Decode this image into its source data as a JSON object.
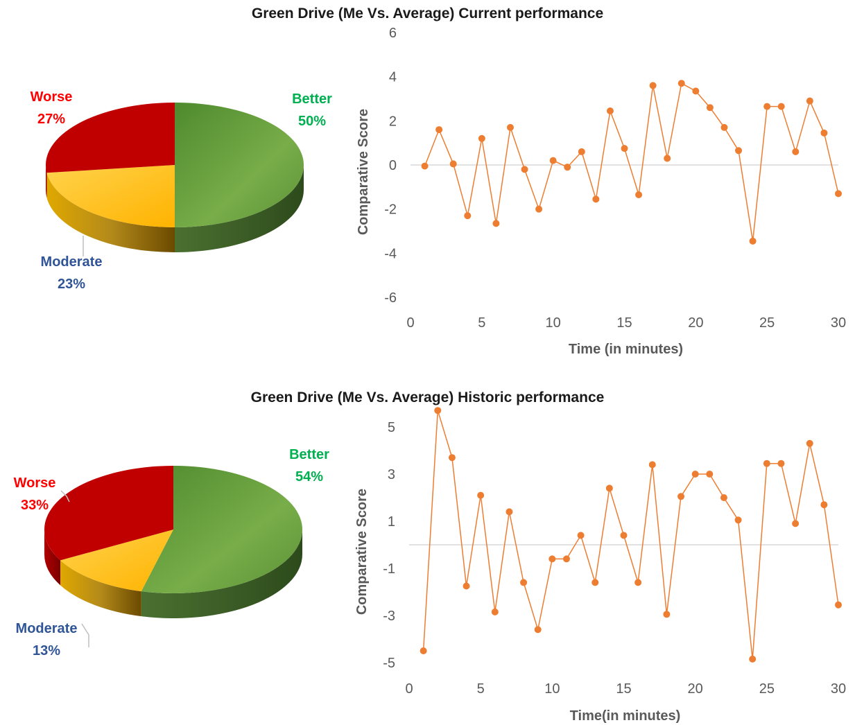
{
  "colors": {
    "better": "#00b050",
    "worse": "#ff0000",
    "moderate": "#2f5597",
    "line": "#ed7d31",
    "pie_green": "#6aa13e",
    "pie_red": "#c00000",
    "pie_yellow": "#ffc000"
  },
  "chart_data": [
    {
      "type": "pie",
      "title": "Green Drive (Me Vs. Average) Current performance",
      "slices": [
        {
          "name": "Better",
          "value": 50,
          "label": "50%"
        },
        {
          "name": "Moderate",
          "value": 23,
          "label": "23%"
        },
        {
          "name": "Worse",
          "value": 27,
          "label": "27%"
        }
      ]
    },
    {
      "type": "line",
      "xlabel": "Time (in minutes)",
      "ylabel": "Comparative Score",
      "xlim": [
        0,
        30
      ],
      "ylim": [
        -6,
        6
      ],
      "xticks": [
        "0",
        "5",
        "10",
        "15",
        "20",
        "25",
        "30"
      ],
      "yticks": [
        "-6",
        "-4",
        "-2",
        "0",
        "2",
        "4",
        "6"
      ],
      "x": [
        1,
        2,
        3,
        4,
        5,
        6,
        7,
        8,
        9,
        10,
        11,
        12,
        13,
        14,
        15,
        16,
        17,
        18,
        19,
        20,
        21,
        22,
        23,
        24,
        25,
        26,
        27,
        28,
        29,
        30
      ],
      "y": [
        -0.05,
        1.6,
        0.05,
        -2.3,
        1.2,
        -2.65,
        1.7,
        -0.2,
        -2.0,
        0.2,
        -0.1,
        0.6,
        -1.55,
        2.45,
        0.75,
        -1.35,
        3.6,
        0.3,
        3.7,
        3.35,
        2.6,
        1.7,
        0.65,
        -3.45,
        2.65,
        2.65,
        0.6,
        2.9,
        1.45,
        -1.3
      ]
    },
    {
      "type": "pie",
      "title": "Green Drive (Me Vs. Average) Historic performance",
      "slices": [
        {
          "name": "Better",
          "value": 54,
          "label": "54%"
        },
        {
          "name": "Moderate",
          "value": 13,
          "label": "13%"
        },
        {
          "name": "Worse",
          "value": 33,
          "label": "33%"
        }
      ]
    },
    {
      "type": "line",
      "xlabel": "Time(in minutes)",
      "ylabel": "Comparative Score",
      "xlim": [
        0,
        30
      ],
      "ylim": [
        -6,
        6
      ],
      "xticks": [
        "0",
        "5",
        "10",
        "15",
        "20",
        "25",
        "30"
      ],
      "yticks": [
        "-5",
        "-3",
        "-1",
        "1",
        "3",
        "5"
      ],
      "ytick_values": [
        -5,
        -3,
        -1,
        1,
        3,
        5
      ],
      "x": [
        1,
        2,
        3,
        4,
        5,
        6,
        7,
        8,
        9,
        10,
        11,
        12,
        13,
        14,
        15,
        16,
        17,
        18,
        19,
        20,
        21,
        22,
        23,
        24,
        25,
        26,
        27,
        28,
        29,
        30
      ],
      "y": [
        -4.5,
        5.7,
        3.7,
        -1.75,
        2.1,
        -2.85,
        1.4,
        -1.6,
        -3.6,
        -0.6,
        -0.6,
        0.4,
        -1.6,
        2.4,
        0.4,
        -1.6,
        3.4,
        -2.95,
        2.05,
        3.0,
        3.0,
        2.0,
        1.05,
        -4.85,
        3.45,
        3.45,
        0.9,
        4.3,
        1.7,
        -2.55
      ]
    }
  ]
}
